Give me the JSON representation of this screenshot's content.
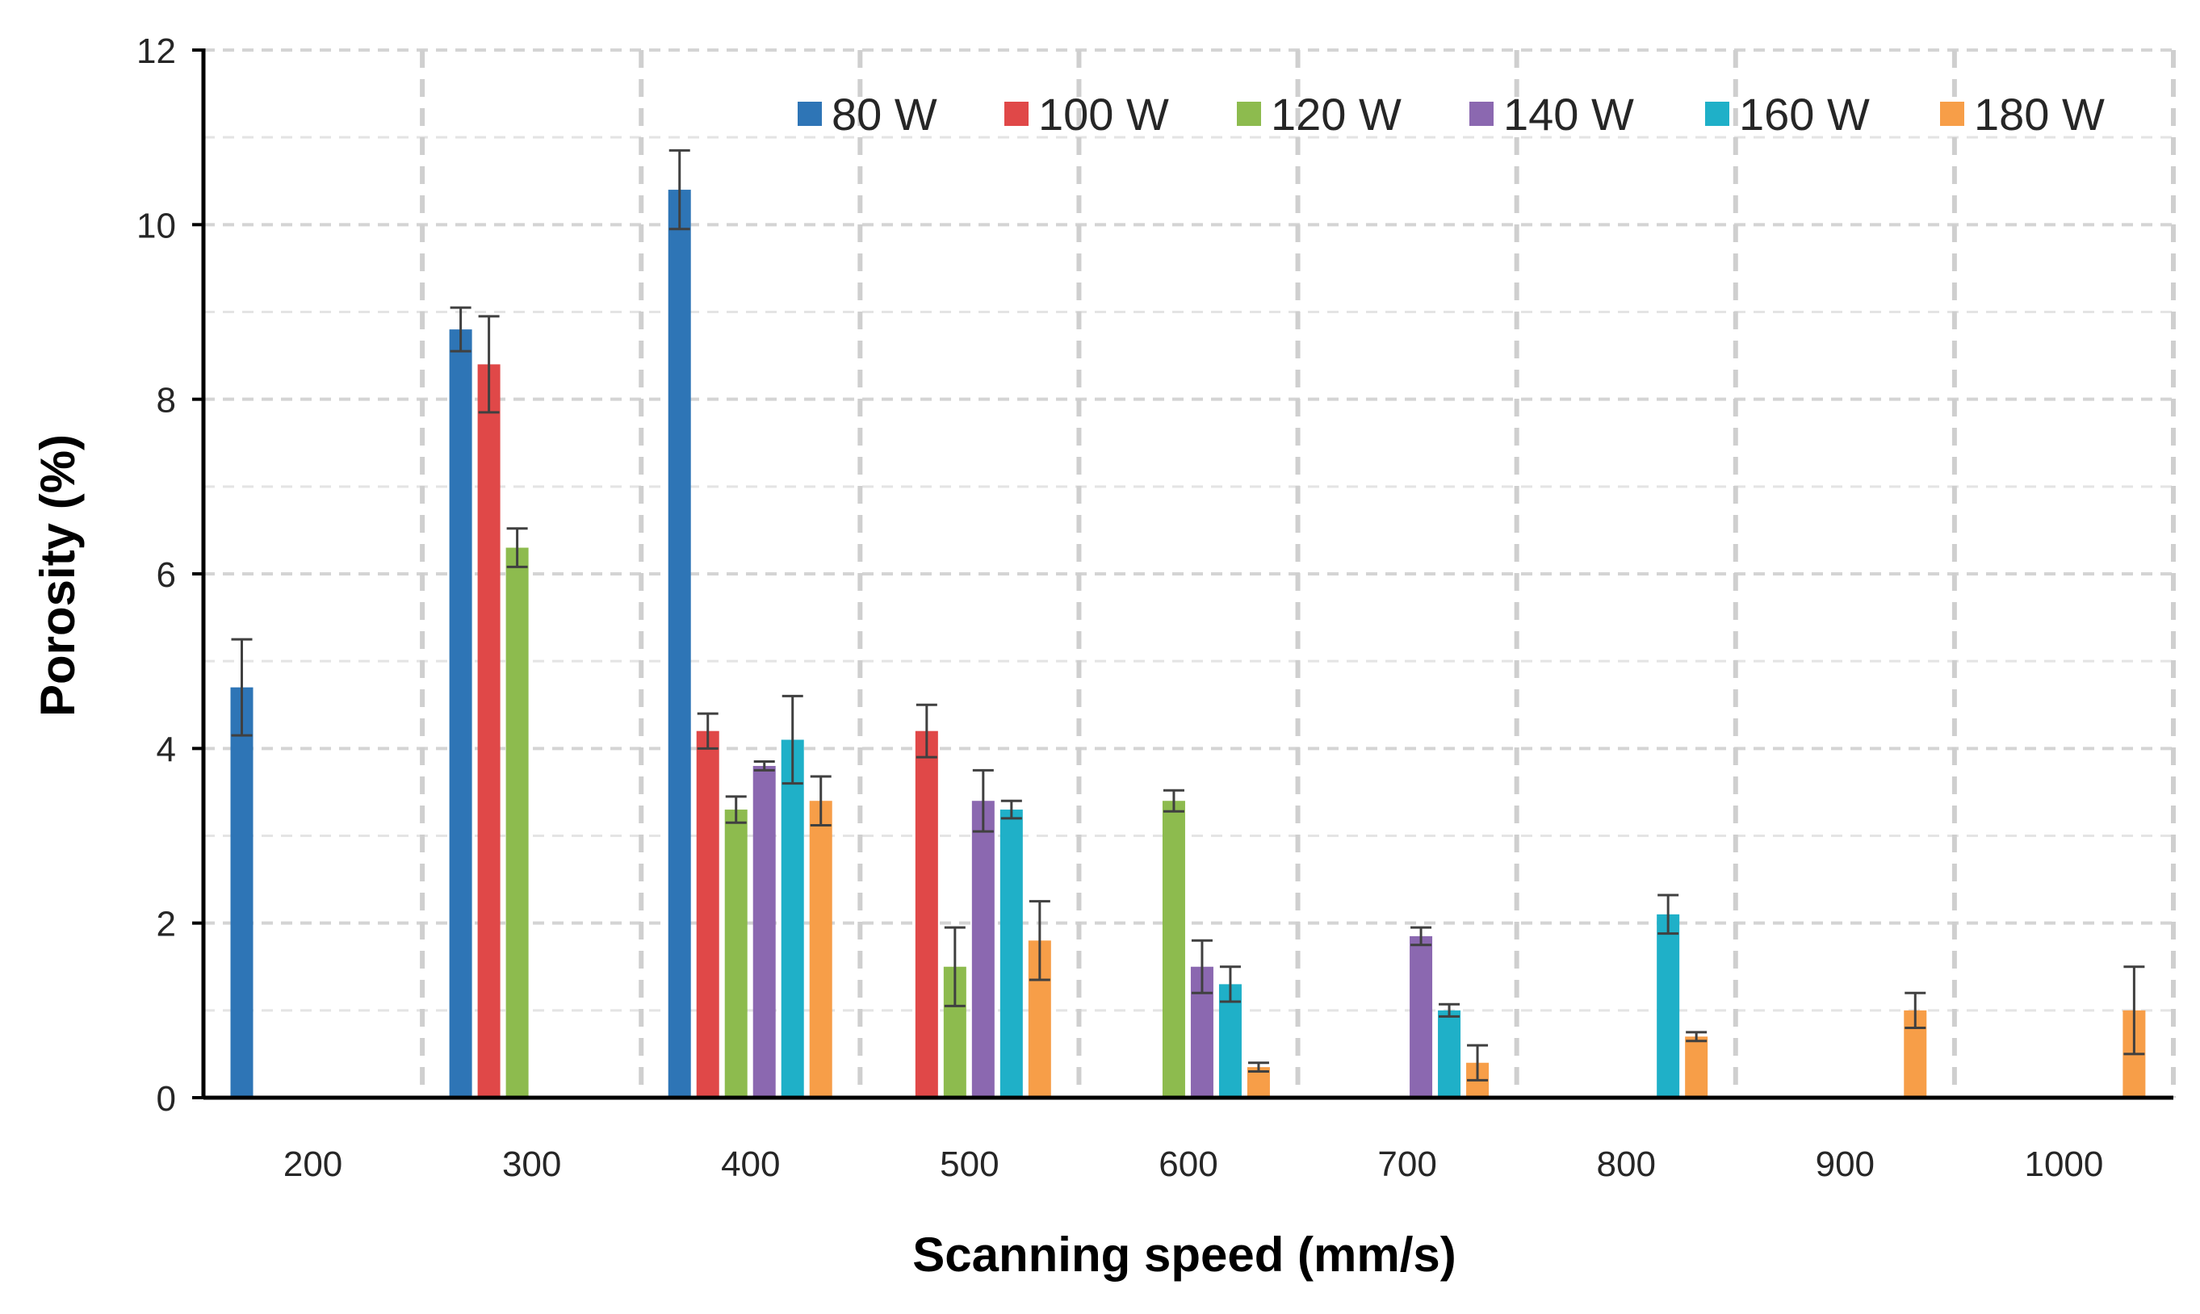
{
  "chart_data": {
    "type": "bar",
    "title": "",
    "xlabel": "Scanning speed (mm/s)",
    "ylabel": "Porosity (%)",
    "ylim": [
      0,
      12
    ],
    "yticks": [
      0,
      2,
      4,
      6,
      8,
      10,
      12
    ],
    "grid": true,
    "legend_position": "top-right",
    "categories": [
      "200",
      "300",
      "400",
      "500",
      "600",
      "700",
      "800",
      "900",
      "1000"
    ],
    "series": [
      {
        "name": "80 W",
        "color": "#2E75B6",
        "values": [
          4.7,
          8.8,
          10.4,
          null,
          null,
          null,
          null,
          null,
          null
        ],
        "errors": [
          0.55,
          0.25,
          0.45,
          null,
          null,
          null,
          null,
          null,
          null
        ]
      },
      {
        "name": "100 W",
        "color": "#E04848",
        "values": [
          null,
          8.4,
          4.2,
          4.2,
          null,
          null,
          null,
          null,
          null
        ],
        "errors": [
          null,
          0.55,
          0.2,
          0.3,
          null,
          null,
          null,
          null,
          null
        ]
      },
      {
        "name": "120 W",
        "color": "#8DBB4E",
        "values": [
          null,
          6.3,
          3.3,
          1.5,
          3.4,
          null,
          null,
          null,
          null
        ],
        "errors": [
          null,
          0.22,
          0.15,
          0.45,
          0.12,
          null,
          null,
          null,
          null
        ]
      },
      {
        "name": "140 W",
        "color": "#8B68B0",
        "values": [
          null,
          null,
          3.8,
          3.4,
          1.5,
          1.85,
          null,
          null,
          null
        ],
        "errors": [
          null,
          null,
          0.05,
          0.35,
          0.3,
          0.1,
          null,
          null,
          null
        ]
      },
      {
        "name": "160 W",
        "color": "#1FB0C8",
        "values": [
          null,
          null,
          4.1,
          3.3,
          1.3,
          1.0,
          2.1,
          null,
          null
        ],
        "errors": [
          null,
          null,
          0.5,
          0.1,
          0.2,
          0.07,
          0.22,
          null,
          null
        ]
      },
      {
        "name": "180 W",
        "color": "#F79E48",
        "values": [
          null,
          null,
          3.4,
          1.8,
          0.35,
          0.4,
          0.7,
          1.0,
          1.0
        ],
        "errors": [
          null,
          null,
          0.28,
          0.45,
          0.05,
          0.2,
          0.05,
          0.2,
          0.5
        ]
      }
    ]
  }
}
